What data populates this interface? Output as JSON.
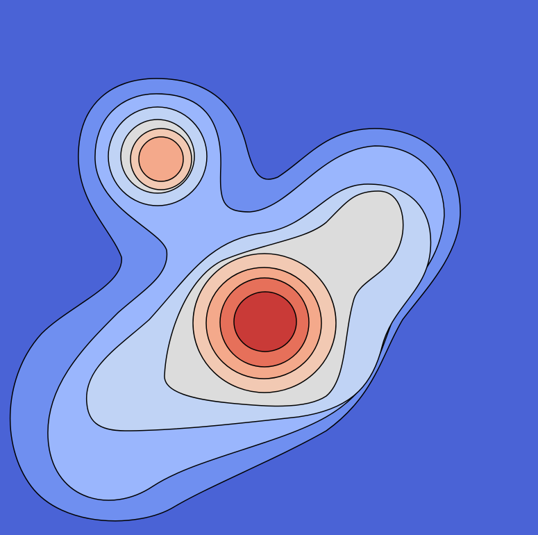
{
  "chart_data": {
    "type": "contour",
    "background": "#4a63d6",
    "colors": [
      "#6f8ff0",
      "#9ab6fd",
      "#c0d3f5",
      "#dcdcdc",
      "#f2c9b3",
      "#f4a98b",
      "#e6705a",
      "#c93a37"
    ],
    "line_color": "#000000"
  }
}
